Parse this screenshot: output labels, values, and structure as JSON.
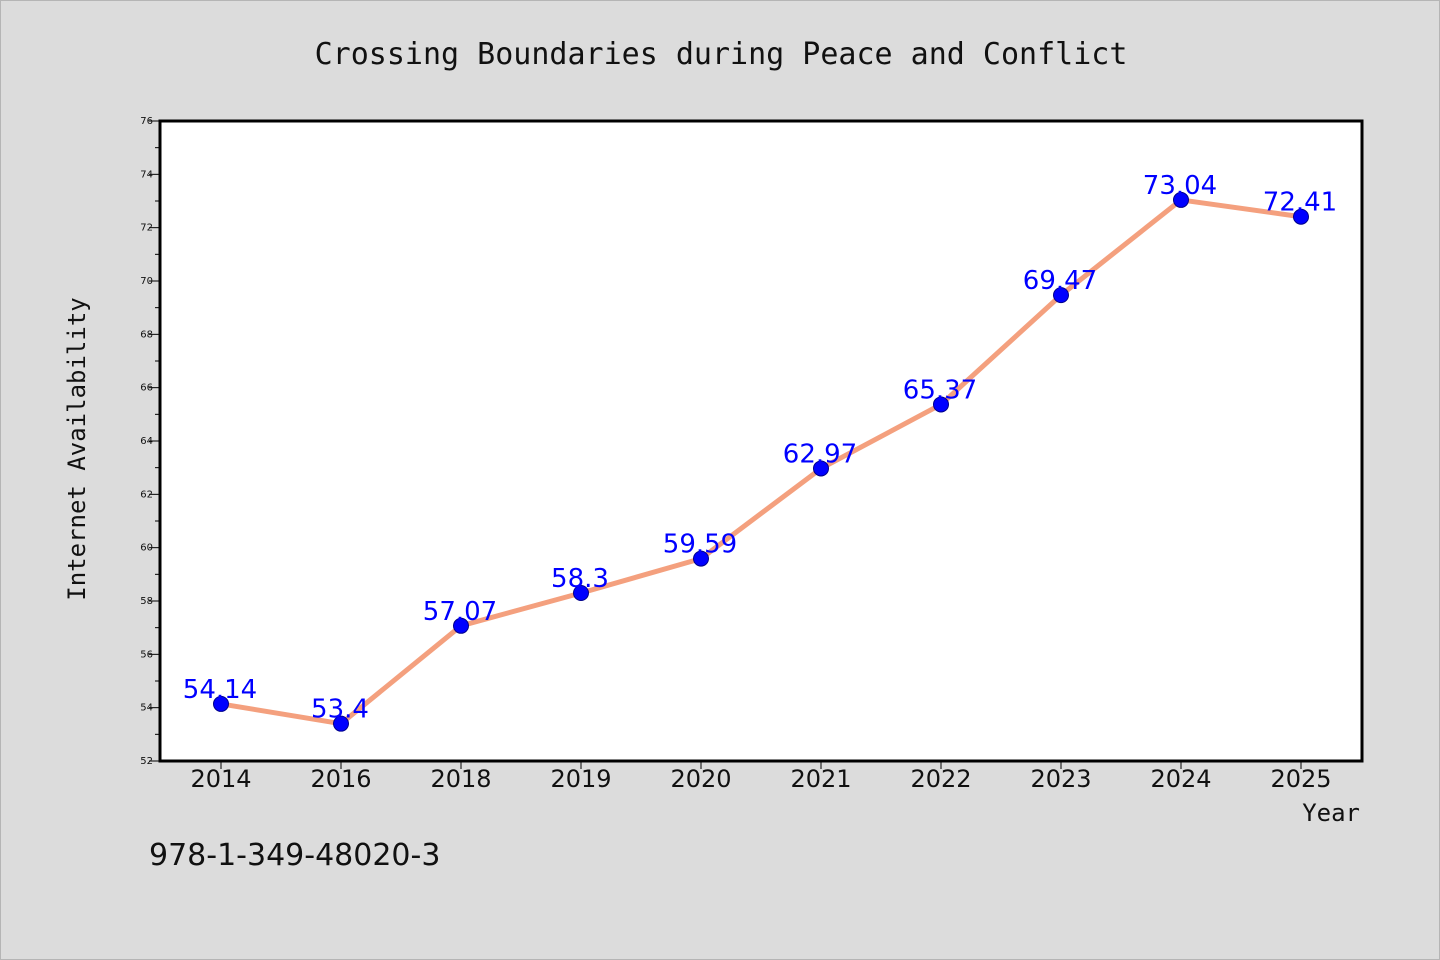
{
  "chart_data": {
    "type": "line",
    "title": "Crossing Boundaries during Peace and Conflict",
    "xlabel": "Year",
    "ylabel": "Internet Availability",
    "categories": [
      "2014",
      "2016",
      "2018",
      "2019",
      "2020",
      "2021",
      "2022",
      "2023",
      "2024",
      "2025"
    ],
    "series": [
      {
        "values": [
          54.14,
          53.4,
          57.07,
          58.3,
          59.59,
          62.97,
          65.37,
          69.47,
          73.04,
          72.41
        ],
        "labels": [
          "54.14",
          "53.4",
          "57.07",
          "58.3",
          "59.59",
          "62.97",
          "65.37",
          "69.47",
          "73.04",
          "72.41"
        ],
        "line_color": "#f4a07e",
        "marker_color": "#0000ff"
      }
    ],
    "ylim": [
      52,
      76
    ],
    "yticks": [
      "52",
      "54",
      "56",
      "58",
      "60",
      "62",
      "64",
      "66",
      "68",
      "70",
      "72",
      "74",
      "76"
    ],
    "grid": false,
    "legend": "none"
  },
  "footer": {
    "isbn": "978-1-349-48020-3"
  },
  "colors": {
    "background": "#dcdcdc",
    "plot_background": "#ffffff",
    "frame": "#000000"
  }
}
